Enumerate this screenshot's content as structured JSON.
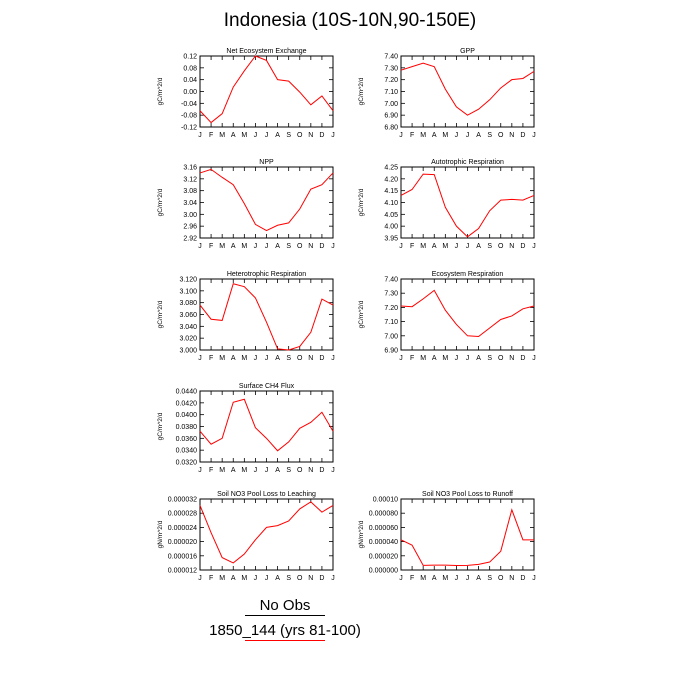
{
  "title": "Indonesia (10S-10N,90-150E)",
  "legend": {
    "obs_label": "No Obs",
    "obs_color": "#000000",
    "case_label": "1850_144 (yrs 81-100)",
    "case_color": "#ff0000"
  },
  "chart_data": [
    {
      "type": "line",
      "title": "Net Ecosystem Exchange",
      "ylabel": "gC/m^2/d",
      "categories": [
        "J",
        "F",
        "M",
        "A",
        "M",
        "J",
        "J",
        "A",
        "S",
        "O",
        "N",
        "D",
        "J"
      ],
      "ylim": [
        -0.12,
        0.12
      ],
      "yticks": [
        -0.12,
        -0.08,
        -0.04,
        0.0,
        0.04,
        0.08,
        0.12
      ],
      "ytick_labels": [
        "-0.12",
        "-0.08",
        "-0.04",
        "0.00",
        "0.04",
        "0.08",
        "0.12"
      ],
      "series": [
        {
          "color": "#ff0000",
          "values": [
            -0.065,
            -0.105,
            -0.075,
            0.015,
            0.07,
            0.12,
            0.105,
            0.04,
            0.035,
            -0.002,
            -0.045,
            -0.015,
            -0.065
          ]
        }
      ]
    },
    {
      "type": "line",
      "title": "GPP",
      "ylabel": "gC/m^2/d",
      "categories": [
        "J",
        "F",
        "M",
        "A",
        "M",
        "J",
        "J",
        "A",
        "S",
        "O",
        "N",
        "D",
        "J"
      ],
      "ylim": [
        6.8,
        7.4
      ],
      "yticks": [
        6.8,
        6.9,
        7.0,
        7.1,
        7.2,
        7.3,
        7.4
      ],
      "ytick_labels": [
        "6.80",
        "6.90",
        "7.00",
        "7.10",
        "7.20",
        "7.30",
        "7.40"
      ],
      "series": [
        {
          "color": "#ff0000",
          "values": [
            7.28,
            7.31,
            7.34,
            7.31,
            7.12,
            6.97,
            6.9,
            6.95,
            7.03,
            7.13,
            7.2,
            7.21,
            7.27
          ]
        }
      ]
    },
    {
      "type": "line",
      "title": "NPP",
      "ylabel": "gC/m^2/d",
      "categories": [
        "J",
        "F",
        "M",
        "A",
        "M",
        "J",
        "J",
        "A",
        "S",
        "O",
        "N",
        "D",
        "J"
      ],
      "ylim": [
        2.92,
        3.16
      ],
      "yticks": [
        2.92,
        2.96,
        3.0,
        3.04,
        3.08,
        3.12,
        3.16
      ],
      "ytick_labels": [
        "2.92",
        "2.96",
        "3.00",
        "3.04",
        "3.08",
        "3.12",
        "3.16"
      ],
      "series": [
        {
          "color": "#ff0000",
          "values": [
            3.14,
            3.152,
            3.125,
            3.1,
            3.036,
            2.966,
            2.945,
            2.963,
            2.971,
            3.018,
            3.085,
            3.1,
            3.14
          ]
        }
      ]
    },
    {
      "type": "line",
      "title": "Autotrophic Respiration",
      "ylabel": "gC/m^2/d",
      "categories": [
        "J",
        "F",
        "M",
        "A",
        "M",
        "J",
        "J",
        "A",
        "S",
        "O",
        "N",
        "D",
        "J"
      ],
      "ylim": [
        3.95,
        4.25
      ],
      "yticks": [
        3.95,
        4.0,
        4.05,
        4.1,
        4.15,
        4.2,
        4.25
      ],
      "ytick_labels": [
        "3.95",
        "4.00",
        "4.05",
        "4.10",
        "4.15",
        "4.20",
        "4.25"
      ],
      "series": [
        {
          "color": "#ff0000",
          "values": [
            4.13,
            4.155,
            4.22,
            4.218,
            4.08,
            4.0,
            3.955,
            3.99,
            4.065,
            4.11,
            4.113,
            4.11,
            4.13
          ]
        }
      ]
    },
    {
      "type": "line",
      "title": "Heterotrophic Respiration",
      "ylabel": "gC/m^2/d",
      "categories": [
        "J",
        "F",
        "M",
        "A",
        "M",
        "J",
        "J",
        "A",
        "S",
        "O",
        "N",
        "D",
        "J"
      ],
      "ylim": [
        3.0,
        3.12
      ],
      "yticks": [
        3.0,
        3.02,
        3.04,
        3.06,
        3.08,
        3.1,
        3.12
      ],
      "ytick_labels": [
        "3.000",
        "3.020",
        "3.040",
        "3.060",
        "3.080",
        "3.100",
        "3.120"
      ],
      "series": [
        {
          "color": "#ff0000",
          "values": [
            3.076,
            3.052,
            3.05,
            3.112,
            3.107,
            3.088,
            3.047,
            3.002,
            3.0,
            3.006,
            3.03,
            3.086,
            3.076
          ]
        }
      ]
    },
    {
      "type": "line",
      "title": "Ecosystem Respiration",
      "ylabel": "gC/m^2/d",
      "categories": [
        "J",
        "F",
        "M",
        "A",
        "M",
        "J",
        "J",
        "A",
        "S",
        "O",
        "N",
        "D",
        "J"
      ],
      "ylim": [
        6.9,
        7.4
      ],
      "yticks": [
        6.9,
        7.0,
        7.1,
        7.2,
        7.3,
        7.4
      ],
      "ytick_labels": [
        "6.90",
        "7.00",
        "7.10",
        "7.20",
        "7.30",
        "7.40"
      ],
      "series": [
        {
          "color": "#ff0000",
          "values": [
            7.21,
            7.205,
            7.26,
            7.32,
            7.18,
            7.08,
            7.0,
            6.995,
            7.055,
            7.115,
            7.14,
            7.19,
            7.21
          ]
        }
      ]
    },
    {
      "type": "line",
      "title": "Surface CH4 Flux",
      "ylabel": "gC/m^2/d",
      "categories": [
        "J",
        "F",
        "M",
        "A",
        "M",
        "J",
        "J",
        "A",
        "S",
        "O",
        "N",
        "D",
        "J"
      ],
      "ylim": [
        0.032,
        0.044
      ],
      "yticks": [
        0.032,
        0.034,
        0.036,
        0.038,
        0.04,
        0.042,
        0.044
      ],
      "ytick_labels": [
        "0.0320",
        "0.0340",
        "0.0360",
        "0.0380",
        "0.0400",
        "0.0420",
        "0.0440"
      ],
      "series": [
        {
          "color": "#ff0000",
          "values": [
            0.0372,
            0.035,
            0.036,
            0.0421,
            0.0426,
            0.0378,
            0.036,
            0.0339,
            0.0354,
            0.0377,
            0.0387,
            0.0404,
            0.0372
          ]
        }
      ]
    },
    {
      "type": "line",
      "title": "Soil NO3 Pool Loss to Leaching",
      "ylabel": "gN/m^2/d",
      "categories": [
        "J",
        "F",
        "M",
        "A",
        "M",
        "J",
        "J",
        "A",
        "S",
        "O",
        "N",
        "D",
        "J"
      ],
      "ylim": [
        1.2e-05,
        3.2e-05
      ],
      "yticks": [
        1.2e-05,
        1.6e-05,
        2e-05,
        2.4e-05,
        2.8e-05,
        3.2e-05
      ],
      "ytick_labels": [
        "0.000012",
        "0.000016",
        "0.000020",
        "0.000024",
        "0.000028",
        "0.000032"
      ],
      "series": [
        {
          "color": "#ff0000",
          "values": [
            3.02e-05,
            2.25e-05,
            1.55e-05,
            1.4e-05,
            1.65e-05,
            2.05e-05,
            2.4e-05,
            2.45e-05,
            2.58e-05,
            2.92e-05,
            3.12e-05,
            2.83e-05,
            3.02e-05
          ]
        }
      ]
    },
    {
      "type": "line",
      "title": "Soil NO3 Pool Loss to Runoff",
      "ylabel": "gN/m^2/d",
      "categories": [
        "J",
        "F",
        "M",
        "A",
        "M",
        "J",
        "J",
        "A",
        "S",
        "O",
        "N",
        "D",
        "J"
      ],
      "ylim": [
        0.0,
        0.0001
      ],
      "yticks": [
        0.0,
        2e-05,
        4e-05,
        6e-05,
        8e-05,
        0.0001
      ],
      "ytick_labels": [
        "0.000000",
        "0.000020",
        "0.000040",
        "0.000060",
        "0.000080",
        "0.00010"
      ],
      "series": [
        {
          "color": "#ff0000",
          "values": [
            4.25e-05,
            3.5e-05,
            6.5e-06,
            6.8e-06,
            6.8e-06,
            6.3e-06,
            6.5e-06,
            8e-06,
            1.12e-05,
            2.65e-05,
            8.48e-05,
            4.25e-05,
            4.25e-05
          ]
        }
      ]
    }
  ]
}
